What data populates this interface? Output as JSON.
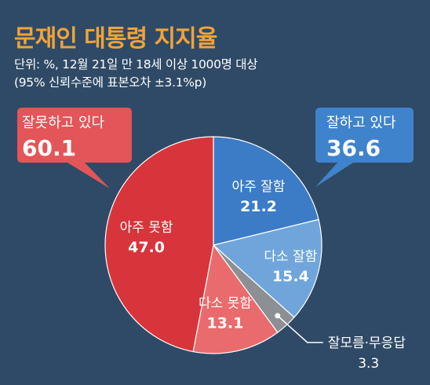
{
  "title": "문재인 대통령 지지율",
  "subtitle_lines": [
    "단위: %, 12월 21일 만 18세 이상 1000명 대상",
    "(95% 신뢰수준에 표본오차 ±3.1%p)"
  ],
  "colors": {
    "background": "#2f4a66",
    "title": "#f0a33a",
    "very_good": "#3c7bc6",
    "somewhat_good": "#6fa5db",
    "dont_know": "#8c8f93",
    "somewhat_bad": "#ea6b6e",
    "very_bad": "#d7353b",
    "negative_callout": "#e35558",
    "positive_callout": "#3f83cc"
  },
  "callouts": {
    "negative": {
      "label": "잘못하고 있다",
      "value": "60.1"
    },
    "positive": {
      "label": "잘하고 있다",
      "value": "36.6"
    }
  },
  "chart_data": {
    "type": "pie",
    "title": "문재인 대통령 지지율",
    "unit": "%",
    "slices": [
      {
        "label": "아주 잘함",
        "value": 21.2,
        "value_text": "21.2",
        "color": "#3c7bc6",
        "group": "잘하고 있다"
      },
      {
        "label": "다소 잘함",
        "value": 15.4,
        "value_text": "15.4",
        "color": "#6fa5db",
        "group": "잘하고 있다"
      },
      {
        "label": "잘모름·무응답",
        "value": 3.3,
        "value_text": "3.3",
        "color": "#8c8f93",
        "group": ""
      },
      {
        "label": "다소 못함",
        "value": 13.1,
        "value_text": "13.1",
        "color": "#ea6b6e",
        "group": "잘못하고 있다"
      },
      {
        "label": "아주 못함",
        "value": 47.0,
        "value_text": "47.0",
        "color": "#d7353b",
        "group": "잘못하고 있다"
      }
    ],
    "totals": [
      {
        "label": "잘하고 있다",
        "value": 36.6
      },
      {
        "label": "잘못하고 있다",
        "value": 60.1
      }
    ]
  }
}
